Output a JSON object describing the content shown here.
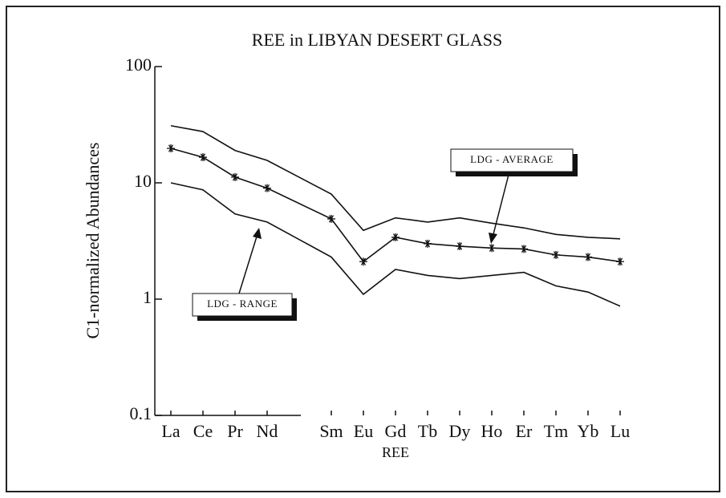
{
  "chart_data": {
    "type": "line",
    "title": "REE in LIBYAN DESERT GLASS",
    "xlabel": "REE",
    "ylabel": "C1-normalized Abundances",
    "x": [
      57,
      58,
      59,
      60,
      62,
      63,
      64,
      65,
      66,
      67,
      68,
      69,
      70,
      71
    ],
    "xlim": [
      56.5,
      71.5
    ],
    "xticks": [
      {
        "value": 57,
        "label": "La"
      },
      {
        "value": 58,
        "label": "Ce"
      },
      {
        "value": 59,
        "label": "Pr"
      },
      {
        "value": 60,
        "label": "Nd"
      },
      {
        "value": 62,
        "label": "Sm"
      },
      {
        "value": 63,
        "label": "Eu"
      },
      {
        "value": 64,
        "label": "Gd"
      },
      {
        "value": 65,
        "label": "Tb"
      },
      {
        "value": 66,
        "label": "Dy"
      },
      {
        "value": 67,
        "label": "Ho"
      },
      {
        "value": 68,
        "label": "Er"
      },
      {
        "value": 69,
        "label": "Tm"
      },
      {
        "value": 70,
        "label": "Yb"
      },
      {
        "value": 71,
        "label": "Lu"
      }
    ],
    "ylim": [
      0.1,
      100
    ],
    "yticks": [
      0.1,
      1,
      10,
      100
    ],
    "log_y": true,
    "series": [
      {
        "color": "#111111",
        "values": [
          31,
          27.6,
          19,
          15.6,
          8,
          3.9,
          5.0,
          4.6,
          5.0,
          4.5,
          4.1,
          3.6,
          3.4,
          3.3
        ]
      },
      {
        "color": "#111111",
        "marker": "asterisk",
        "values": [
          19.8,
          16.6,
          11.2,
          9.0,
          4.9,
          2.1,
          3.4,
          3.0,
          2.85,
          2.75,
          2.7,
          2.4,
          2.3,
          2.1
        ]
      },
      {
        "color": "#111111",
        "values": [
          10,
          8.7,
          5.4,
          4.6,
          2.3,
          1.1,
          1.8,
          1.6,
          1.5,
          1.6,
          1.7,
          1.3,
          1.15,
          0.87
        ]
      }
    ],
    "annotations": [
      {
        "text": "LDG - AVERAGE"
      },
      {
        "text": "LDG - RANGE"
      }
    ]
  }
}
